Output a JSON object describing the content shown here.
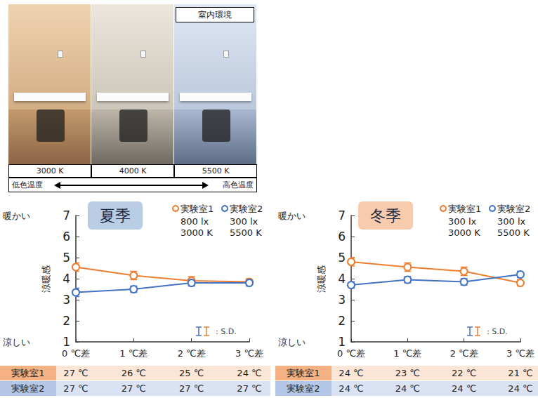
{
  "room_panel": {
    "title": "室内環境",
    "color_temperatures": [
      "3000 K",
      "4000 K",
      "5500 K"
    ],
    "scale_low": "低色温度",
    "scale_high": "高色温度"
  },
  "chart_data": [
    {
      "type": "line",
      "title": "夏季",
      "y_label": "涼暖感",
      "annotations": {
        "top": "暖かい",
        "bottom": "涼しい",
        "error_bars": ": S.D."
      },
      "categories": [
        "0 ℃差",
        "1 ℃差",
        "2 ℃差",
        "3 ℃差"
      ],
      "series": [
        {
          "name": "実験室1",
          "color": "#ed7d31",
          "marker": "open_circle",
          "values": [
            4.55,
            4.15,
            3.9,
            3.85
          ],
          "errors": [
            0.2,
            0.2,
            0.2,
            0.15
          ],
          "conditions": [
            "800 lx",
            "3000 K"
          ]
        },
        {
          "name": "実験室2",
          "color": "#4472c4",
          "marker": "open_circle",
          "values": [
            3.35,
            3.5,
            3.8,
            3.8
          ],
          "errors": [
            0.2,
            0.15,
            0.15,
            0.15
          ],
          "conditions": [
            "300 lx",
            "5500 K"
          ]
        }
      ],
      "ylim": [
        1,
        7
      ],
      "yticks": [
        1,
        2,
        3,
        4,
        5,
        6,
        7
      ],
      "grid": false,
      "legend": "upper right"
    },
    {
      "type": "line",
      "title": "冬季",
      "y_label": "涼暖感",
      "annotations": {
        "top": "暖かい",
        "bottom": "涼しい",
        "error_bars": ": S.D."
      },
      "categories": [
        "0 ℃差",
        "1 ℃差",
        "2 ℃差",
        "3 ℃差"
      ],
      "series": [
        {
          "name": "実験室1",
          "color": "#ed7d31",
          "marker": "open_circle",
          "values": [
            4.8,
            4.55,
            4.35,
            3.8
          ],
          "errors": [
            0.2,
            0.2,
            0.2,
            0.15
          ],
          "conditions": [
            "300 lx",
            "3000 K"
          ]
        },
        {
          "name": "実験室2",
          "color": "#4472c4",
          "marker": "open_circle",
          "values": [
            3.7,
            3.95,
            3.85,
            4.2
          ],
          "errors": [
            0.15,
            0.15,
            0.15,
            0.15
          ],
          "conditions": [
            "300 lx",
            "5500 K"
          ]
        }
      ],
      "ylim": [
        1,
        7
      ],
      "yticks": [
        1,
        2,
        3,
        4,
        5,
        6,
        7
      ],
      "grid": false,
      "legend": "upper right"
    }
  ],
  "tables": [
    {
      "rows": [
        [
          "実験室1",
          "27 ℃",
          "26 ℃",
          "25 ℃",
          "24 ℃"
        ],
        [
          "実験室2",
          "27 ℃",
          "27 ℃",
          "27 ℃",
          "27 ℃"
        ]
      ]
    },
    {
      "rows": [
        [
          "実験室1",
          "24 ℃",
          "23 ℃",
          "22 ℃",
          "21 ℃"
        ],
        [
          "実験室2",
          "24 ℃",
          "24 ℃",
          "24 ℃",
          "24 ℃"
        ]
      ]
    }
  ]
}
